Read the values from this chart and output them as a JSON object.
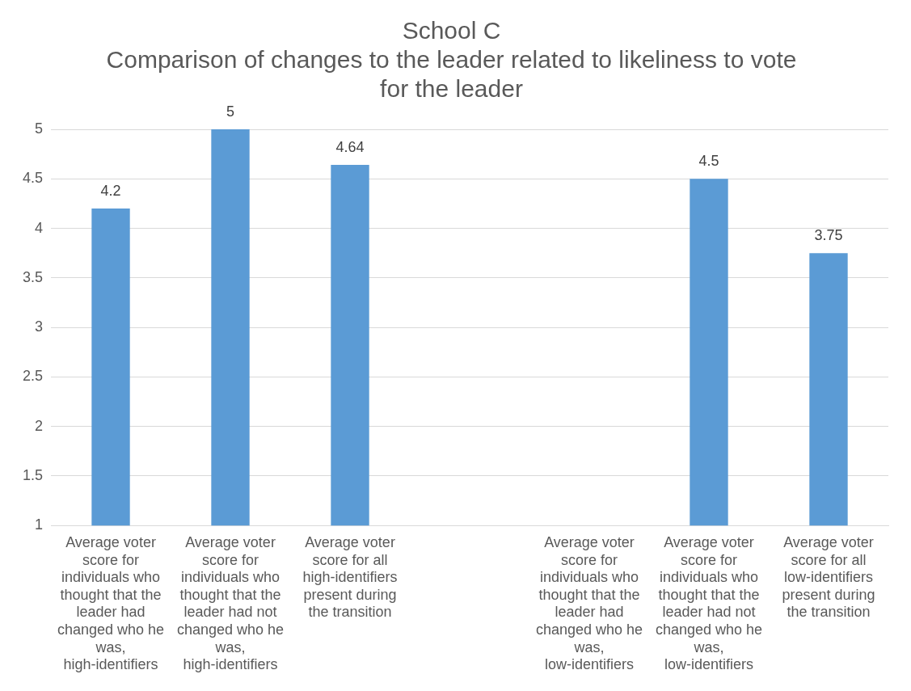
{
  "chart_data": {
    "type": "bar",
    "title": "School C",
    "subtitle": "Comparison of changes to the leader related to likeliness to vote for the leader",
    "categories": [
      "Average voter score for individuals who thought that the leader had changed who he was, high-identifiers",
      "Average voter score for individuals who thought that the leader had not changed who he was, high-identifiers",
      "Average voter score for all high-identifiers present during the transition",
      null,
      "Average voter score for individuals who thought that the leader had changed who he was, low-identifiers",
      "Average voter score for individuals who thought that the leader had not changed who he was, low-identifiers",
      "Average voter score for all low-identifiers present during the transition"
    ],
    "values": [
      4.2,
      5,
      4.64,
      null,
      null,
      4.5,
      3.75
    ],
    "color": "#5b9bd5",
    "ylim": [
      1,
      5
    ],
    "yticks": [
      1,
      1.5,
      2,
      2.5,
      3,
      3.5,
      4,
      4.5,
      5
    ],
    "grid": "y",
    "legend": false,
    "data_labels": true
  }
}
